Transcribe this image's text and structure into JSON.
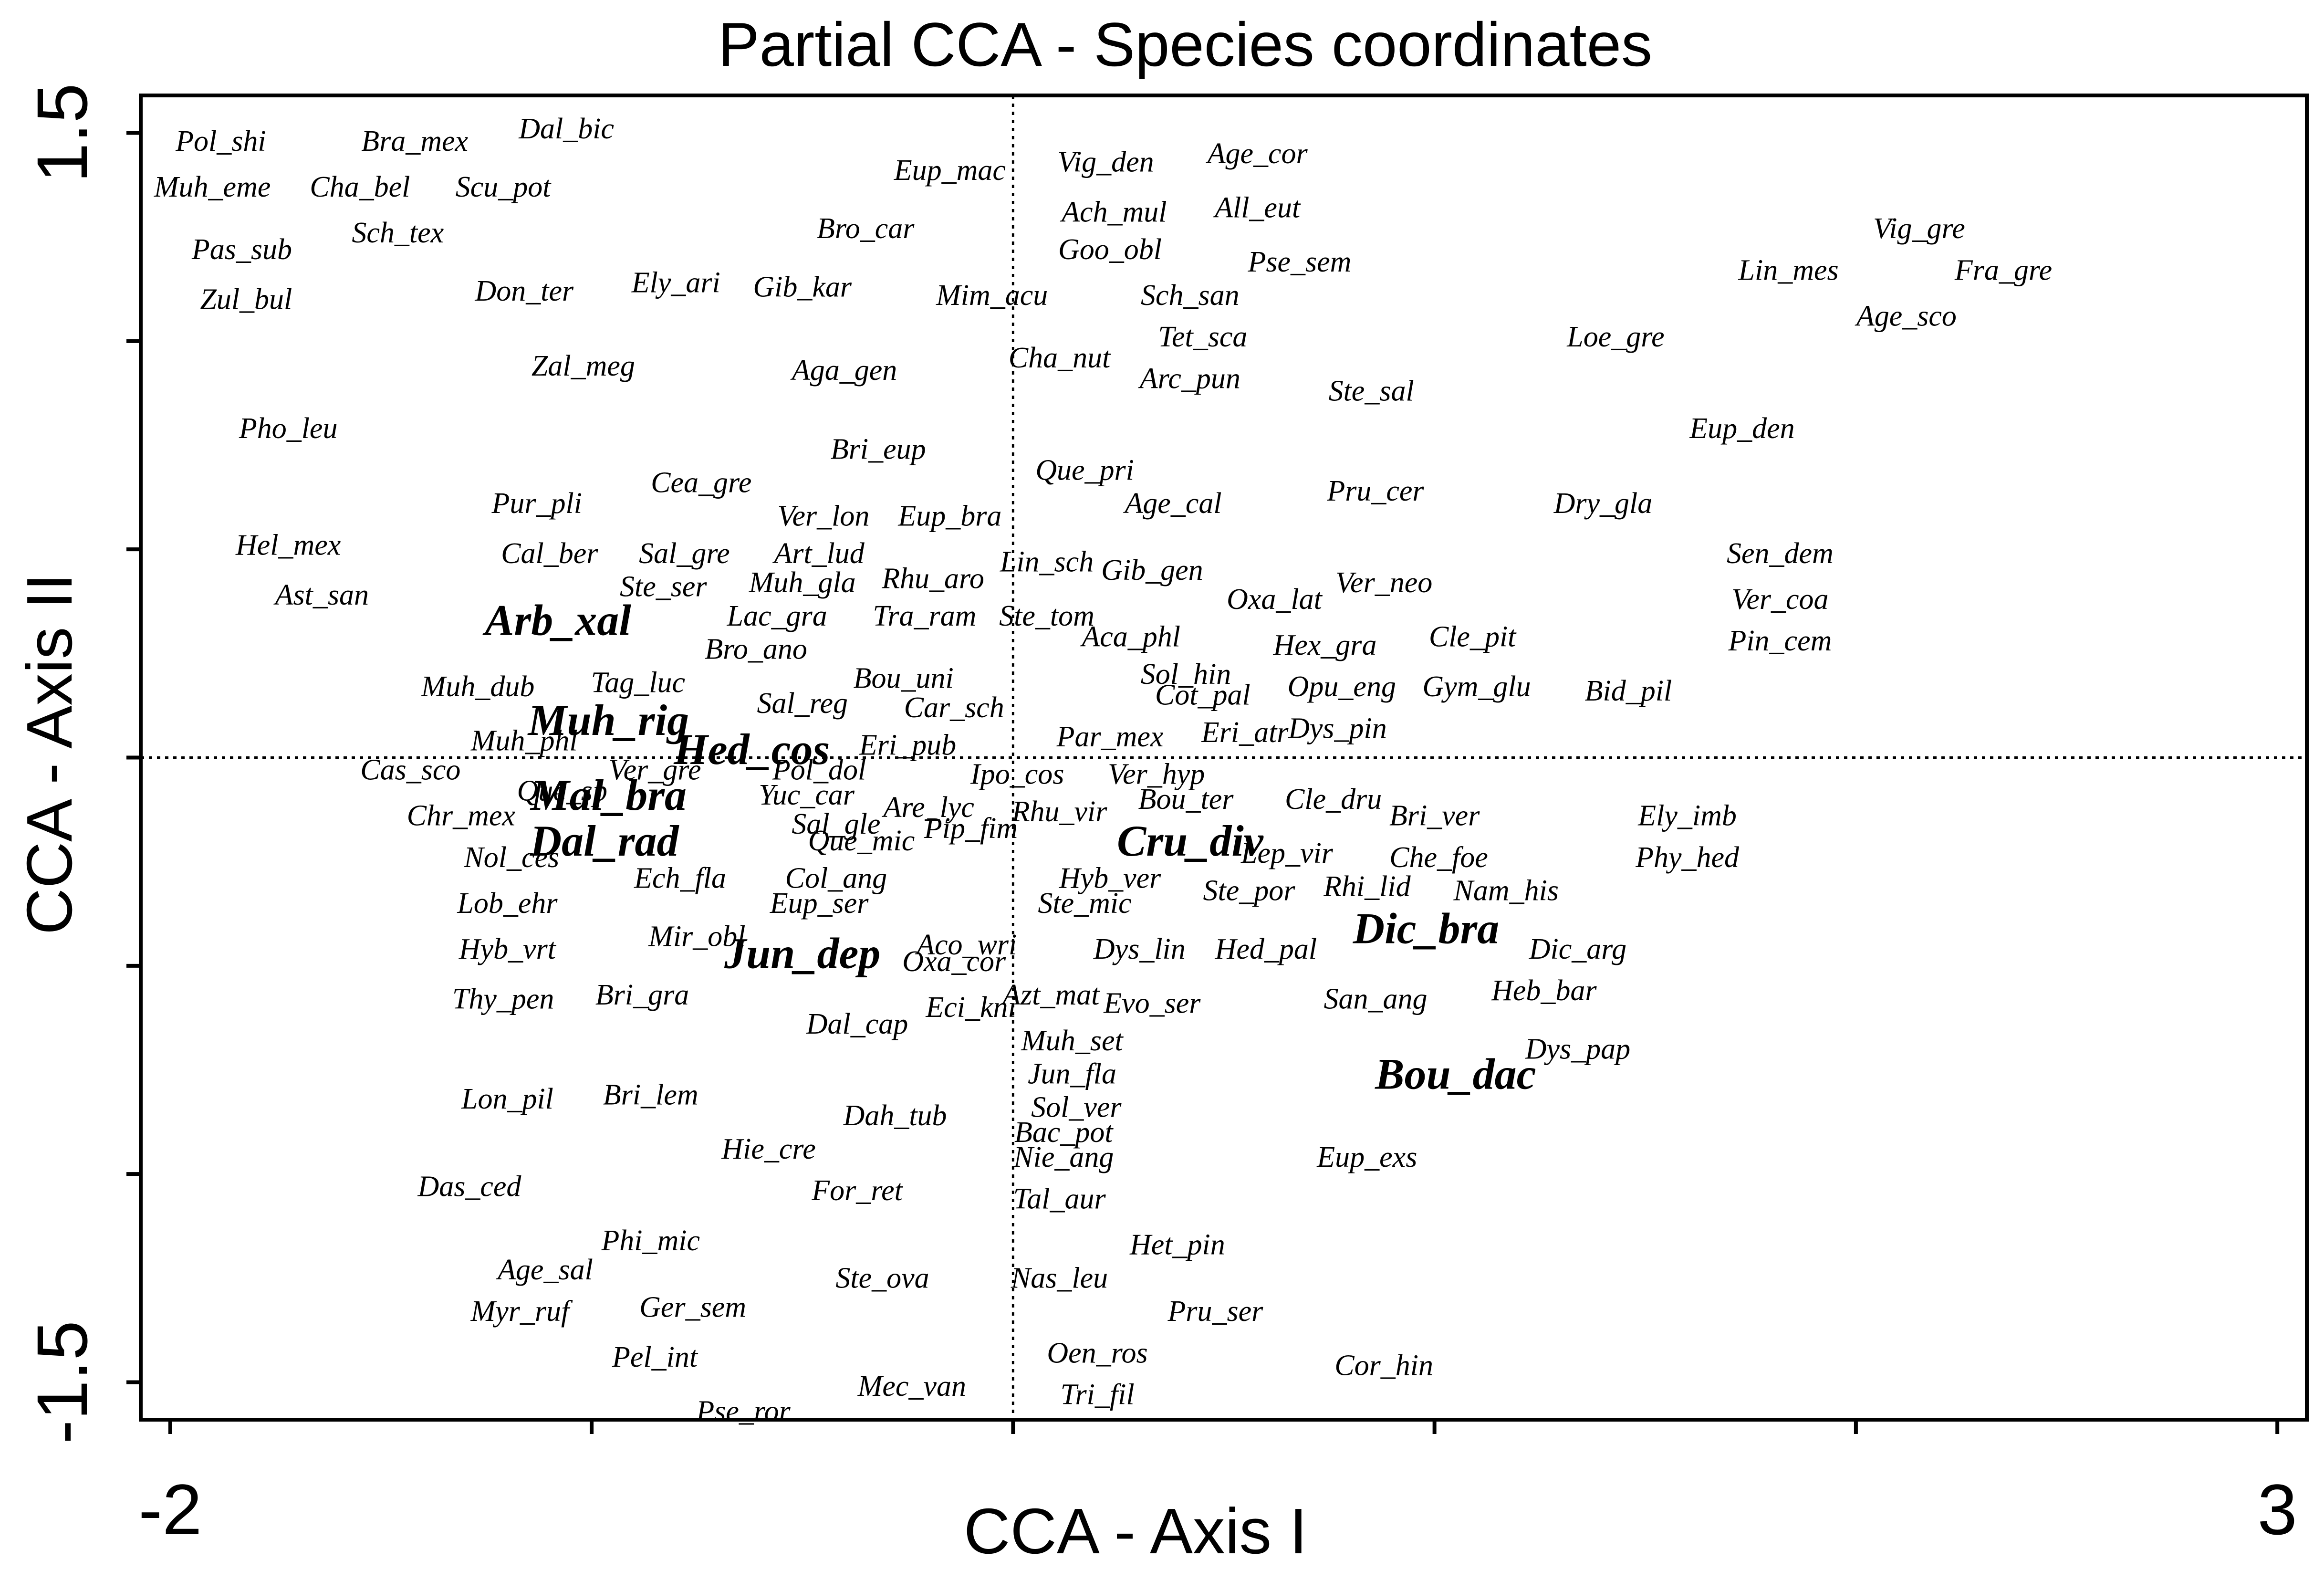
{
  "chart_data": {
    "type": "scatter",
    "title": "Partial CCA - Species coordinates",
    "xlabel": "CCA - Axis I",
    "ylabel": "CCA - Axis II",
    "xlim": [
      -2.07,
      3.07
    ],
    "ylim": [
      -1.59,
      1.59
    ],
    "x_tick_labels": [
      {
        "value": -2,
        "label": "-2"
      },
      {
        "value": 3,
        "label": "3"
      }
    ],
    "y_tick_labels": [
      {
        "value": 1.5,
        "label": "1.5"
      },
      {
        "value": -1.5,
        "label": "-1.5"
      }
    ],
    "x_ticks": [
      -2,
      -1,
      0,
      1,
      2,
      3
    ],
    "y_ticks": [
      1.5,
      1.0,
      0.5,
      0,
      -0.5,
      -1.0,
      -1.5
    ],
    "reference_lines": {
      "x": 0,
      "y": 0
    },
    "species": [
      {
        "label": "Pol_shi",
        "x": -1.88,
        "y": 1.48,
        "bold": false
      },
      {
        "label": "Bra_mex",
        "x": -1.42,
        "y": 1.48,
        "bold": false
      },
      {
        "label": "Dal_bic",
        "x": -1.06,
        "y": 1.51,
        "bold": false
      },
      {
        "label": "Muh_eme",
        "x": -1.9,
        "y": 1.37,
        "bold": false
      },
      {
        "label": "Cha_bel",
        "x": -1.55,
        "y": 1.37,
        "bold": false
      },
      {
        "label": "Scu_pot",
        "x": -1.21,
        "y": 1.37,
        "bold": false
      },
      {
        "label": "Sch_tex",
        "x": -1.46,
        "y": 1.26,
        "bold": false
      },
      {
        "label": "Pas_sub",
        "x": -1.83,
        "y": 1.22,
        "bold": false
      },
      {
        "label": "Zul_bul",
        "x": -1.82,
        "y": 1.1,
        "bold": false
      },
      {
        "label": "Don_ter",
        "x": -1.16,
        "y": 1.12,
        "bold": false
      },
      {
        "label": "Ely_ari",
        "x": -0.8,
        "y": 1.14,
        "bold": false
      },
      {
        "label": "Gib_kar",
        "x": -0.5,
        "y": 1.13,
        "bold": false
      },
      {
        "label": "Bro_car",
        "x": -0.35,
        "y": 1.27,
        "bold": false
      },
      {
        "label": "Eup_mac",
        "x": -0.15,
        "y": 1.41,
        "bold": false
      },
      {
        "label": "Vig_den",
        "x": 0.22,
        "y": 1.43,
        "bold": false
      },
      {
        "label": "Age_cor",
        "x": 0.58,
        "y": 1.45,
        "bold": false
      },
      {
        "label": "Ach_mul",
        "x": 0.24,
        "y": 1.31,
        "bold": false
      },
      {
        "label": "All_eut",
        "x": 0.58,
        "y": 1.32,
        "bold": false
      },
      {
        "label": "Goo_obl",
        "x": 0.23,
        "y": 1.22,
        "bold": false
      },
      {
        "label": "Pse_sem",
        "x": 0.68,
        "y": 1.19,
        "bold": false
      },
      {
        "label": "Mim_acu",
        "x": -0.05,
        "y": 1.11,
        "bold": false
      },
      {
        "label": "Sch_san",
        "x": 0.42,
        "y": 1.11,
        "bold": false
      },
      {
        "label": "Tet_sca",
        "x": 0.45,
        "y": 1.01,
        "bold": false
      },
      {
        "label": "Cha_nut",
        "x": 0.11,
        "y": 0.96,
        "bold": false
      },
      {
        "label": "Arc_pun",
        "x": 0.42,
        "y": 0.91,
        "bold": false
      },
      {
        "label": "Ste_sal",
        "x": 0.85,
        "y": 0.88,
        "bold": false
      },
      {
        "label": "Zal_meg",
        "x": -1.02,
        "y": 0.94,
        "bold": false
      },
      {
        "label": "Aga_gen",
        "x": -0.4,
        "y": 0.93,
        "bold": false
      },
      {
        "label": "Pho_leu",
        "x": -1.72,
        "y": 0.79,
        "bold": false
      },
      {
        "label": "Bri_eup",
        "x": -0.32,
        "y": 0.74,
        "bold": false
      },
      {
        "label": "Que_pri",
        "x": 0.17,
        "y": 0.69,
        "bold": false
      },
      {
        "label": "Pru_cer",
        "x": 0.86,
        "y": 0.64,
        "bold": false
      },
      {
        "label": "Age_cal",
        "x": 0.38,
        "y": 0.61,
        "bold": false
      },
      {
        "label": "Cea_gre",
        "x": -0.74,
        "y": 0.66,
        "bold": false
      },
      {
        "label": "Pur_pli",
        "x": -1.13,
        "y": 0.61,
        "bold": false
      },
      {
        "label": "Ver_lon",
        "x": -0.45,
        "y": 0.58,
        "bold": false
      },
      {
        "label": "Eup_bra",
        "x": -0.15,
        "y": 0.58,
        "bold": false
      },
      {
        "label": "Hel_mex",
        "x": -1.72,
        "y": 0.51,
        "bold": false
      },
      {
        "label": "Cal_ber",
        "x": -1.1,
        "y": 0.49,
        "bold": false
      },
      {
        "label": "Sal_gre",
        "x": -0.78,
        "y": 0.49,
        "bold": false
      },
      {
        "label": "Art_lud",
        "x": -0.46,
        "y": 0.49,
        "bold": false
      },
      {
        "label": "Lin_sch",
        "x": 0.08,
        "y": 0.47,
        "bold": false
      },
      {
        "label": "Gib_gen",
        "x": 0.33,
        "y": 0.45,
        "bold": false
      },
      {
        "label": "Rhu_aro",
        "x": -0.19,
        "y": 0.43,
        "bold": false
      },
      {
        "label": "Muh_gla",
        "x": -0.5,
        "y": 0.42,
        "bold": false
      },
      {
        "label": "Ste_ser",
        "x": -0.83,
        "y": 0.41,
        "bold": false
      },
      {
        "label": "Ver_neo",
        "x": 0.88,
        "y": 0.42,
        "bold": false
      },
      {
        "label": "Oxa_lat",
        "x": 0.62,
        "y": 0.38,
        "bold": false
      },
      {
        "label": "Ast_san",
        "x": -1.64,
        "y": 0.39,
        "bold": false
      },
      {
        "label": "Arb_xal",
        "x": -1.08,
        "y": 0.33,
        "bold": true
      },
      {
        "label": "Lac_gra",
        "x": -0.56,
        "y": 0.34,
        "bold": false
      },
      {
        "label": "Tra_ram",
        "x": -0.21,
        "y": 0.34,
        "bold": false
      },
      {
        "label": "Ste_tom",
        "x": 0.08,
        "y": 0.34,
        "bold": false
      },
      {
        "label": "Aca_phl",
        "x": 0.28,
        "y": 0.29,
        "bold": false
      },
      {
        "label": "Hex_gra",
        "x": 0.74,
        "y": 0.27,
        "bold": false
      },
      {
        "label": "Cle_pit",
        "x": 1.09,
        "y": 0.29,
        "bold": false
      },
      {
        "label": "Bro_ano",
        "x": -0.61,
        "y": 0.26,
        "bold": false
      },
      {
        "label": "Sol_hin",
        "x": 0.41,
        "y": 0.2,
        "bold": false
      },
      {
        "label": "Bou_uni",
        "x": -0.26,
        "y": 0.19,
        "bold": false
      },
      {
        "label": "Muh_dub",
        "x": -1.27,
        "y": 0.17,
        "bold": false
      },
      {
        "label": "Tag_luc",
        "x": -0.89,
        "y": 0.18,
        "bold": false
      },
      {
        "label": "Opu_eng",
        "x": 0.78,
        "y": 0.17,
        "bold": false
      },
      {
        "label": "Gym_glu",
        "x": 1.1,
        "y": 0.17,
        "bold": false
      },
      {
        "label": "Bid_pil",
        "x": 1.46,
        "y": 0.16,
        "bold": false
      },
      {
        "label": "Cot_pal",
        "x": 0.45,
        "y": 0.15,
        "bold": false
      },
      {
        "label": "Sal_reg",
        "x": -0.5,
        "y": 0.13,
        "bold": false
      },
      {
        "label": "Car_sch",
        "x": -0.14,
        "y": 0.12,
        "bold": false
      },
      {
        "label": "Muh_rig",
        "x": -0.96,
        "y": 0.09,
        "bold": true
      },
      {
        "label": "Dys_pin",
        "x": 0.77,
        "y": 0.07,
        "bold": false
      },
      {
        "label": "Eri_atr",
        "x": 0.55,
        "y": 0.06,
        "bold": false
      },
      {
        "label": "Par_mex",
        "x": 0.23,
        "y": 0.05,
        "bold": false
      },
      {
        "label": "Muh_phl",
        "x": -1.16,
        "y": 0.04,
        "bold": false
      },
      {
        "label": "Hed_cos",
        "x": -0.62,
        "y": 0.02,
        "bold": true
      },
      {
        "label": "Eri_pub",
        "x": -0.25,
        "y": 0.03,
        "bold": false
      },
      {
        "label": "Ver_gre",
        "x": -0.85,
        "y": -0.03,
        "bold": false
      },
      {
        "label": "Pol_dol",
        "x": -0.46,
        "y": -0.03,
        "bold": false
      },
      {
        "label": "Cas_sco",
        "x": -1.43,
        "y": -0.03,
        "bold": false
      },
      {
        "label": "Ipo_cos",
        "x": 0.01,
        "y": -0.04,
        "bold": false
      },
      {
        "label": "Ver_hyp",
        "x": 0.34,
        "y": -0.04,
        "bold": false
      },
      {
        "label": "Que_sp",
        "x": -1.07,
        "y": -0.08,
        "bold": false
      },
      {
        "label": "Mal_bra",
        "x": -0.96,
        "y": -0.09,
        "bold": true
      },
      {
        "label": "Yuc_car",
        "x": -0.49,
        "y": -0.09,
        "bold": false
      },
      {
        "label": "Bou_ter",
        "x": 0.41,
        "y": -0.1,
        "bold": false
      },
      {
        "label": "Cle_dru",
        "x": 0.76,
        "y": -0.1,
        "bold": false
      },
      {
        "label": "Are_lyc",
        "x": -0.2,
        "y": -0.12,
        "bold": false
      },
      {
        "label": "Rhu_vir",
        "x": 0.11,
        "y": -0.13,
        "bold": false
      },
      {
        "label": "Bri_ver",
        "x": 1.0,
        "y": -0.14,
        "bold": false
      },
      {
        "label": "Ely_imb",
        "x": 1.6,
        "y": -0.14,
        "bold": false
      },
      {
        "label": "Chr_mex",
        "x": -1.31,
        "y": -0.14,
        "bold": false
      },
      {
        "label": "Sal_gle",
        "x": -0.42,
        "y": -0.16,
        "bold": false
      },
      {
        "label": "Pip_fim",
        "x": -0.1,
        "y": -0.17,
        "bold": false
      },
      {
        "label": "Que_mic",
        "x": -0.36,
        "y": -0.2,
        "bold": false
      },
      {
        "label": "Dal_rad",
        "x": -0.97,
        "y": -0.2,
        "bold": true
      },
      {
        "label": "Cru_div",
        "x": 0.42,
        "y": -0.2,
        "bold": true
      },
      {
        "label": "Lep_vir",
        "x": 0.65,
        "y": -0.23,
        "bold": false
      },
      {
        "label": "Che_foe",
        "x": 1.01,
        "y": -0.24,
        "bold": false
      },
      {
        "label": "Nol_ces",
        "x": -1.19,
        "y": -0.24,
        "bold": false
      },
      {
        "label": "Phy_hed",
        "x": 1.6,
        "y": -0.24,
        "bold": false
      },
      {
        "label": "Ech_fla",
        "x": -0.79,
        "y": -0.29,
        "bold": false
      },
      {
        "label": "Col_ang",
        "x": -0.42,
        "y": -0.29,
        "bold": false
      },
      {
        "label": "Hyb_ver",
        "x": 0.23,
        "y": -0.29,
        "bold": false
      },
      {
        "label": "Rhi_lid",
        "x": 0.84,
        "y": -0.31,
        "bold": false
      },
      {
        "label": "Ste_por",
        "x": 0.56,
        "y": -0.32,
        "bold": false
      },
      {
        "label": "Nam_his",
        "x": 1.17,
        "y": -0.32,
        "bold": false
      },
      {
        "label": "Lob_ehr",
        "x": -1.2,
        "y": -0.35,
        "bold": false
      },
      {
        "label": "Eup_ser",
        "x": -0.46,
        "y": -0.35,
        "bold": false
      },
      {
        "label": "Ste_mic",
        "x": 0.17,
        "y": -0.35,
        "bold": false
      },
      {
        "label": "Dic_bra",
        "x": 0.98,
        "y": -0.41,
        "bold": true
      },
      {
        "label": "Mir_obl",
        "x": -0.75,
        "y": -0.43,
        "bold": false
      },
      {
        "label": "Aco_wri",
        "x": -0.11,
        "y": -0.45,
        "bold": false
      },
      {
        "label": "Hyb_vrt",
        "x": -1.2,
        "y": -0.46,
        "bold": false
      },
      {
        "label": "Jun_dep",
        "x": -0.5,
        "y": -0.47,
        "bold": true
      },
      {
        "label": "Dys_lin",
        "x": 0.3,
        "y": -0.46,
        "bold": false
      },
      {
        "label": "Hed_pal",
        "x": 0.6,
        "y": -0.46,
        "bold": false
      },
      {
        "label": "Dic_arg",
        "x": 1.34,
        "y": -0.46,
        "bold": false
      },
      {
        "label": "Oxa_cor",
        "x": -0.14,
        "y": -0.49,
        "bold": false
      },
      {
        "label": "Thy_pen",
        "x": -1.21,
        "y": -0.58,
        "bold": false
      },
      {
        "label": "Bri_gra",
        "x": -0.88,
        "y": -0.57,
        "bold": false
      },
      {
        "label": "Azt_mat",
        "x": 0.09,
        "y": -0.57,
        "bold": false
      },
      {
        "label": "San_ang",
        "x": 0.86,
        "y": -0.58,
        "bold": false
      },
      {
        "label": "Heb_bar",
        "x": 1.26,
        "y": -0.56,
        "bold": false
      },
      {
        "label": "Evo_ser",
        "x": 0.33,
        "y": -0.59,
        "bold": false
      },
      {
        "label": "Eci_kni",
        "x": -0.1,
        "y": -0.6,
        "bold": false
      },
      {
        "label": "Dal_cap",
        "x": -0.37,
        "y": -0.64,
        "bold": false
      },
      {
        "label": "Muh_set",
        "x": 0.14,
        "y": -0.68,
        "bold": false
      },
      {
        "label": "Dys_pap",
        "x": 1.34,
        "y": -0.7,
        "bold": false
      },
      {
        "label": "Bou_dac",
        "x": 1.05,
        "y": -0.76,
        "bold": true
      },
      {
        "label": "Jun_fla",
        "x": 0.14,
        "y": -0.76,
        "bold": false
      },
      {
        "label": "Lon_pil",
        "x": -1.2,
        "y": -0.82,
        "bold": false
      },
      {
        "label": "Bri_lem",
        "x": -0.86,
        "y": -0.81,
        "bold": false
      },
      {
        "label": "Sol_ver",
        "x": 0.15,
        "y": -0.84,
        "bold": false
      },
      {
        "label": "Dah_tub",
        "x": -0.28,
        "y": -0.86,
        "bold": false
      },
      {
        "label": "Bac_pot",
        "x": 0.12,
        "y": -0.9,
        "bold": false
      },
      {
        "label": "Nie_ang",
        "x": 0.12,
        "y": -0.96,
        "bold": false
      },
      {
        "label": "Hie_cre",
        "x": -0.58,
        "y": -0.94,
        "bold": false
      },
      {
        "label": "Eup_exs",
        "x": 0.84,
        "y": -0.96,
        "bold": false
      },
      {
        "label": "Das_ced",
        "x": -1.29,
        "y": -1.03,
        "bold": false
      },
      {
        "label": "For_ret",
        "x": -0.37,
        "y": -1.04,
        "bold": false
      },
      {
        "label": "Tal_aur",
        "x": 0.11,
        "y": -1.06,
        "bold": false
      },
      {
        "label": "Phi_mic",
        "x": -0.86,
        "y": -1.16,
        "bold": false
      },
      {
        "label": "Het_pin",
        "x": 0.39,
        "y": -1.17,
        "bold": false
      },
      {
        "label": "Age_sal",
        "x": -1.11,
        "y": -1.23,
        "bold": false
      },
      {
        "label": "Nas_leu",
        "x": 0.11,
        "y": -1.25,
        "bold": false
      },
      {
        "label": "Ste_ova",
        "x": -0.31,
        "y": -1.25,
        "bold": false
      },
      {
        "label": "Ger_sem",
        "x": -0.76,
        "y": -1.32,
        "bold": false
      },
      {
        "label": "Myr_ruf",
        "x": -1.17,
        "y": -1.33,
        "bold": false
      },
      {
        "label": "Pru_ser",
        "x": 0.48,
        "y": -1.33,
        "bold": false
      },
      {
        "label": "Oen_ros",
        "x": 0.2,
        "y": -1.43,
        "bold": false
      },
      {
        "label": "Cor_hin",
        "x": 0.88,
        "y": -1.46,
        "bold": false
      },
      {
        "label": "Pel_int",
        "x": -0.85,
        "y": -1.44,
        "bold": false
      },
      {
        "label": "Mec_van",
        "x": -0.24,
        "y": -1.51,
        "bold": false
      },
      {
        "label": "Tri_fil",
        "x": 0.2,
        "y": -1.53,
        "bold": false
      },
      {
        "label": "Pse_ror",
        "x": -0.64,
        "y": -1.57,
        "bold": false
      },
      {
        "label": "Vig_gre",
        "x": 2.15,
        "y": 1.27,
        "bold": false
      },
      {
        "label": "Lin_mes",
        "x": 1.84,
        "y": 1.17,
        "bold": false
      },
      {
        "label": "Fra_gre",
        "x": 2.35,
        "y": 1.17,
        "bold": false
      },
      {
        "label": "Age_sco",
        "x": 2.12,
        "y": 1.06,
        "bold": false
      },
      {
        "label": "Loe_gre",
        "x": 1.43,
        "y": 1.01,
        "bold": false
      },
      {
        "label": "Eup_den",
        "x": 1.73,
        "y": 0.79,
        "bold": false
      },
      {
        "label": "Dry_gla",
        "x": 1.4,
        "y": 0.61,
        "bold": false
      },
      {
        "label": "Sen_dem",
        "x": 1.82,
        "y": 0.49,
        "bold": false
      },
      {
        "label": "Ver_coa",
        "x": 1.82,
        "y": 0.38,
        "bold": false
      },
      {
        "label": "Pin_cem",
        "x": 1.82,
        "y": 0.28,
        "bold": false
      }
    ]
  }
}
